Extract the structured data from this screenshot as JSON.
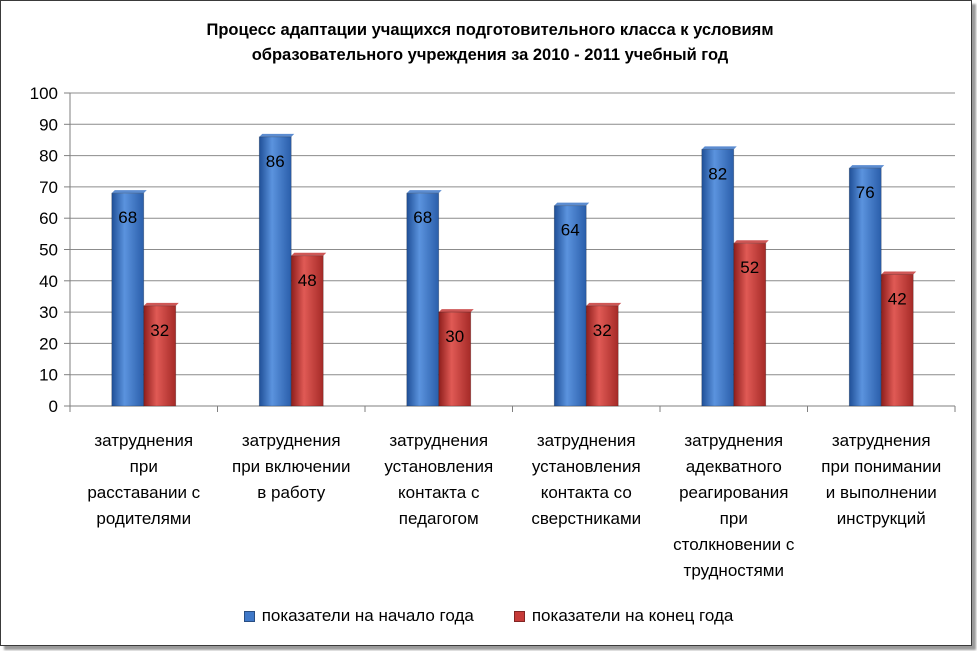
{
  "chart_data": {
    "type": "bar",
    "title_lines": [
      "Процесс адаптации учащихся подготовительного  класса к условиям",
      "образовательного учреждения за 2010 - 2011 учебный год"
    ],
    "categories": [
      [
        "затруднения",
        "при",
        "расставании с",
        "родителями"
      ],
      [
        "затруднения",
        "при включении",
        "в работу"
      ],
      [
        "затруднения",
        "установления",
        "контакта с",
        "педагогом"
      ],
      [
        "затруднения",
        "установления",
        "контакта со",
        "сверстниками"
      ],
      [
        "затруднения",
        "адекватного",
        "реагирования",
        "при",
        "столкновении с",
        "трудностями"
      ],
      [
        "затруднения",
        "при понимании",
        "и выполнении",
        "инструкций"
      ]
    ],
    "series": [
      {
        "name": "показатели на начало года",
        "color": "#3f78c8",
        "values": [
          68,
          86,
          68,
          64,
          82,
          76
        ]
      },
      {
        "name": "показатели на конец года",
        "color": "#c63a38",
        "values": [
          32,
          48,
          30,
          32,
          52,
          42
        ]
      }
    ],
    "ylim": [
      0,
      100
    ],
    "yticks": [
      0,
      10,
      20,
      30,
      40,
      50,
      60,
      70,
      80,
      90,
      100
    ],
    "grid": true,
    "data_labels": true,
    "legend_position": "bottom"
  }
}
